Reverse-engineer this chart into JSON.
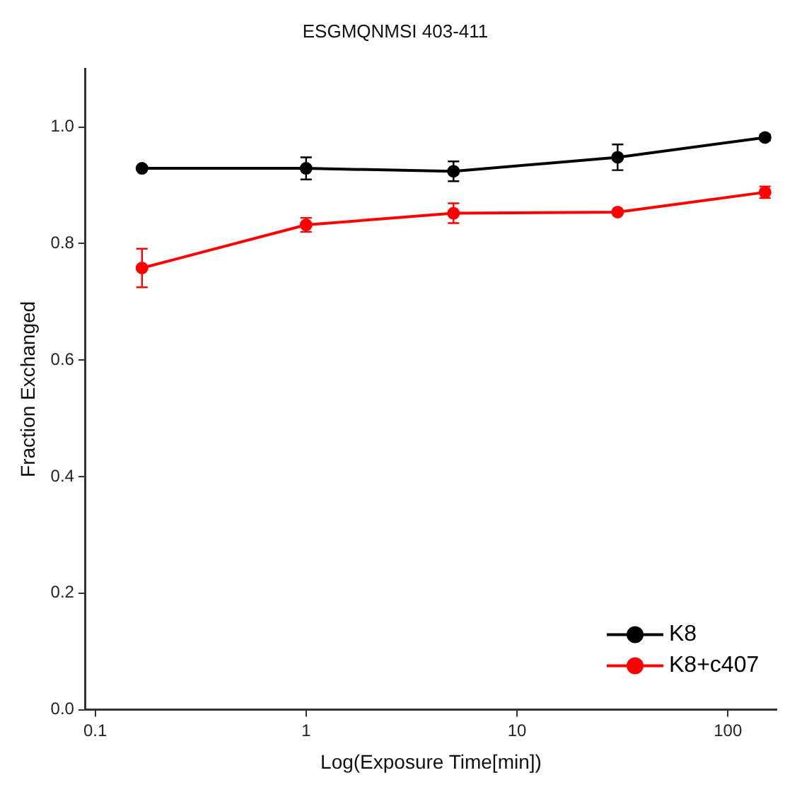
{
  "chart_data": {
    "type": "line",
    "title": "ESGMQNMSI 403-411",
    "xlabel": "Log(Exposure Time[min])",
    "ylabel": "Fraction Exchanged",
    "x": [
      0.1667,
      1,
      5,
      30,
      150
    ],
    "series": [
      {
        "name": "K8",
        "color": "#000000",
        "values": [
          0.929,
          0.929,
          0.924,
          0.948,
          0.982
        ],
        "errors": [
          0.003,
          0.019,
          0.017,
          0.022,
          0.005
        ]
      },
      {
        "name": "K8+c407",
        "color": "#ff0000",
        "values": [
          0.758,
          0.832,
          0.852,
          0.854,
          0.888
        ],
        "errors": [
          0.033,
          0.012,
          0.017,
          0.003,
          0.01
        ]
      }
    ],
    "log": "x",
    "xlim": [
      0.09,
      170
    ],
    "xticks": [
      0.1,
      1,
      10,
      100
    ],
    "ylim": [
      0,
      1.1
    ],
    "yticks": [
      {
        "value": 0,
        "label": "0.0"
      },
      {
        "value": 0.2,
        "label": "0.2"
      },
      {
        "value": 0.4,
        "label": "0.4"
      },
      {
        "value": 0.6,
        "label": "0.6"
      },
      {
        "value": 0.8,
        "label": "0.8"
      },
      {
        "value": 1,
        "label": "1.0"
      }
    ],
    "grid": false,
    "legend": "bottom right",
    "marker": "circle",
    "line_style": "solid"
  }
}
